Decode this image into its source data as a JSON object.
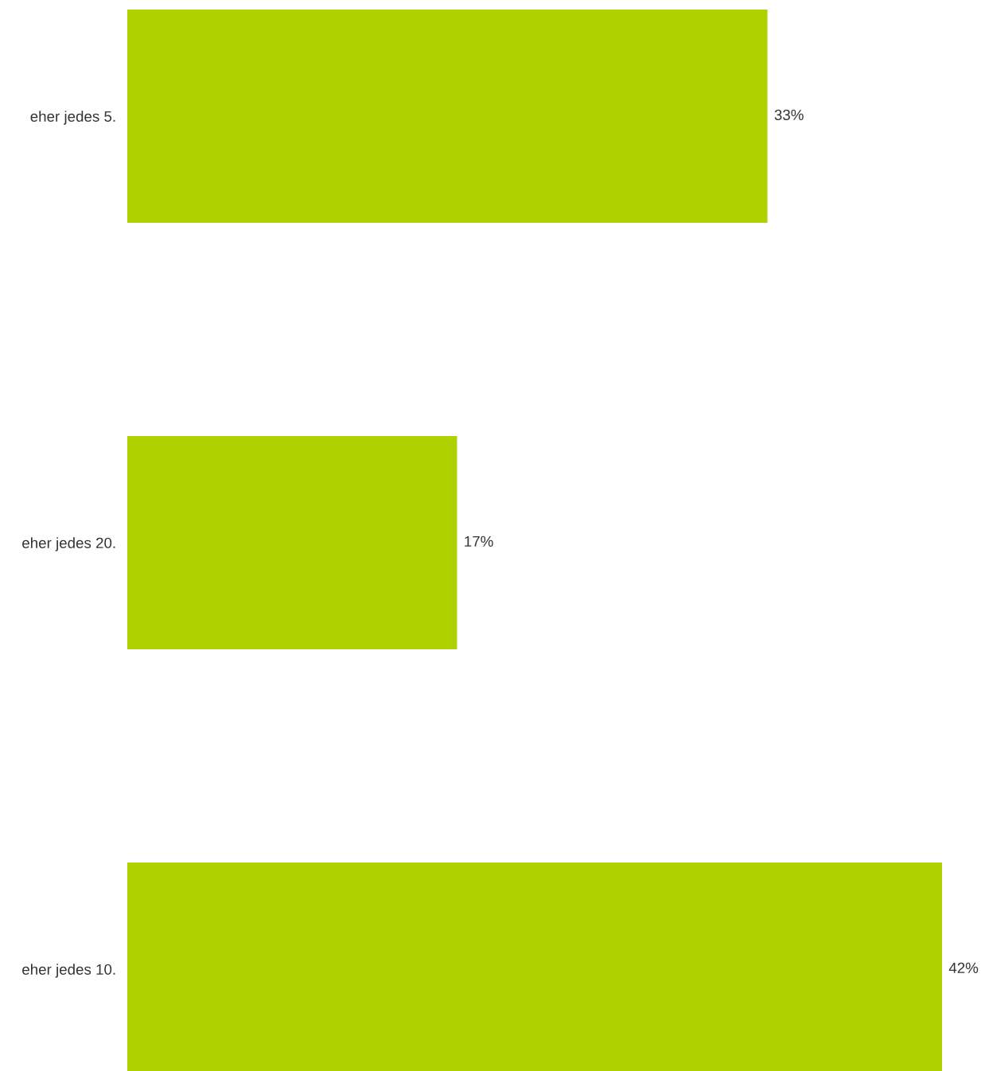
{
  "chart_data": {
    "type": "bar",
    "orientation": "horizontal",
    "categories": [
      "eher jedes 5.",
      "eher jedes 20.",
      "eher jedes 10."
    ],
    "values": [
      33,
      17,
      42
    ],
    "color": "#b0d100",
    "value_labels": [
      "33%",
      "17%",
      "42%"
    ]
  }
}
